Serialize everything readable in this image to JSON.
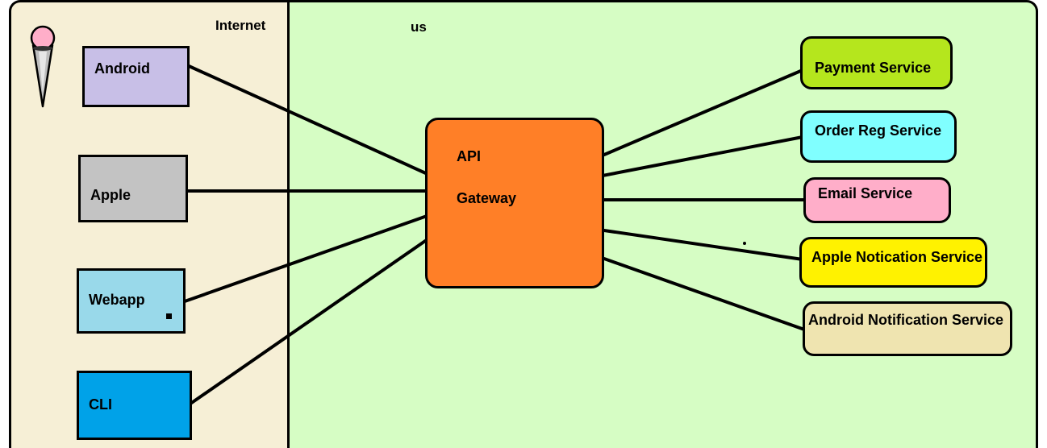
{
  "regions": {
    "internet": "Internet",
    "us": "us"
  },
  "clients": [
    "Android",
    "Apple",
    "Webapp",
    "CLI"
  ],
  "gateway": {
    "line1": "API",
    "line2": "Gateway"
  },
  "services": [
    "Payment Service",
    "Order Reg Service",
    "Email  Service",
    "Apple Notication Service",
    "Android Notification Service"
  ],
  "colors": {
    "internet_bg": "#f6efd6",
    "us_bg": "#d6fdc4",
    "gateway": "#ff7f27",
    "android": "#c8bfe7",
    "apple": "#c3c3c3",
    "webapp": "#99d9ea",
    "cli": "#00a2e8",
    "payment": "#b5e61d",
    "order": "#80ffff",
    "email": "#ffaec9",
    "apple_notification": "#fff200",
    "android_notification": "#efe4b0"
  },
  "icons": [
    "pin-icon"
  ]
}
